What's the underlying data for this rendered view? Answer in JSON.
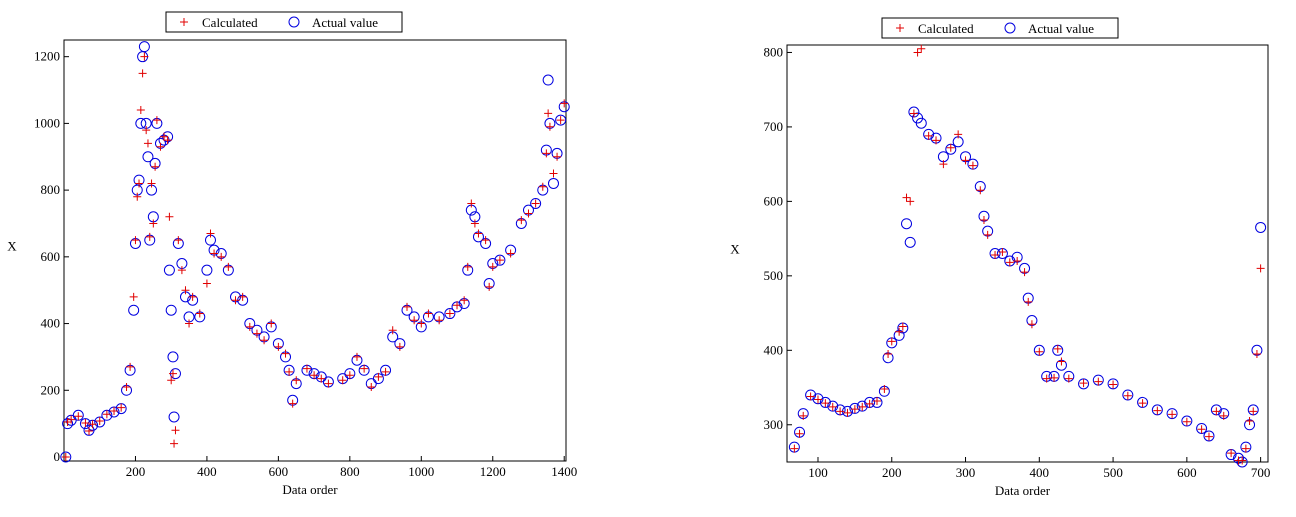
{
  "chart_data": [
    {
      "type": "scatter",
      "xlabel": "Data order",
      "ylabel": "X",
      "xlim": [
        0,
        1405
      ],
      "ylim": [
        -12,
        1250
      ],
      "xticks": [
        200,
        400,
        600,
        800,
        1000,
        1200,
        1400
      ],
      "yticks": [
        0,
        200,
        400,
        600,
        800,
        1000,
        1200
      ],
      "x": [
        5,
        10,
        20,
        40,
        60,
        70,
        80,
        100,
        120,
        140,
        160,
        175,
        185,
        195,
        200,
        205,
        210,
        215,
        220,
        225,
        230,
        235,
        240,
        245,
        250,
        255,
        260,
        270,
        280,
        290,
        295,
        300,
        305,
        308,
        312,
        320,
        330,
        340,
        350,
        360,
        380,
        400,
        410,
        420,
        440,
        460,
        480,
        500,
        520,
        540,
        560,
        580,
        600,
        620,
        630,
        640,
        650,
        680,
        700,
        720,
        740,
        780,
        800,
        820,
        840,
        860,
        880,
        900,
        920,
        940,
        960,
        980,
        1000,
        1020,
        1050,
        1080,
        1100,
        1120,
        1130,
        1140,
        1150,
        1160,
        1180,
        1190,
        1200,
        1220,
        1250,
        1280,
        1300,
        1320,
        1340,
        1350,
        1355,
        1360,
        1370,
        1380,
        1390,
        1400
      ],
      "series": [
        {
          "name": "Calculated",
          "color": "#e00000",
          "marker": "plus",
          "values": [
            0,
            105,
            112,
            122,
            102,
            78,
            98,
            108,
            128,
            138,
            148,
            210,
            270,
            480,
            650,
            780,
            820,
            1040,
            1150,
            1200,
            980,
            940,
            660,
            820,
            700,
            870,
            1010,
            930,
            960,
            950,
            720,
            230,
            250,
            40,
            80,
            650,
            560,
            500,
            400,
            480,
            430,
            520,
            670,
            610,
            600,
            570,
            470,
            480,
            390,
            370,
            350,
            400,
            330,
            310,
            255,
            160,
            230,
            265,
            245,
            235,
            220,
            230,
            245,
            300,
            265,
            210,
            240,
            255,
            380,
            330,
            450,
            410,
            400,
            430,
            410,
            430,
            455,
            470,
            570,
            760,
            700,
            670,
            650,
            510,
            570,
            590,
            610,
            710,
            730,
            760,
            810,
            910,
            1030,
            990,
            850,
            900,
            1010,
            1060
          ]
        },
        {
          "name": "Actual value",
          "color": "#0000e0",
          "marker": "circle",
          "values": [
            0,
            100,
            110,
            125,
            100,
            80,
            95,
            105,
            125,
            135,
            145,
            200,
            260,
            440,
            640,
            800,
            830,
            1000,
            1200,
            1230,
            1000,
            900,
            650,
            800,
            720,
            880,
            1000,
            940,
            950,
            960,
            560,
            440,
            300,
            120,
            250,
            640,
            580,
            480,
            420,
            470,
            420,
            560,
            650,
            620,
            610,
            560,
            480,
            470,
            400,
            380,
            360,
            390,
            340,
            300,
            260,
            170,
            220,
            260,
            250,
            240,
            225,
            235,
            250,
            290,
            260,
            220,
            235,
            260,
            360,
            340,
            440,
            420,
            390,
            420,
            420,
            430,
            450,
            460,
            560,
            740,
            720,
            660,
            640,
            520,
            580,
            590,
            620,
            700,
            740,
            760,
            800,
            920,
            1130,
            1000,
            820,
            910,
            1010,
            1050
          ]
        }
      ]
    },
    {
      "type": "scatter",
      "xlabel": "Data order",
      "ylabel": "X",
      "xlim": [
        58,
        710
      ],
      "ylim": [
        250,
        810
      ],
      "xticks": [
        100,
        200,
        300,
        400,
        500,
        600,
        700
      ],
      "yticks": [
        300,
        400,
        500,
        600,
        700,
        800
      ],
      "x": [
        68,
        75,
        80,
        90,
        100,
        110,
        120,
        130,
        140,
        150,
        160,
        170,
        180,
        190,
        195,
        200,
        210,
        215,
        220,
        225,
        230,
        235,
        240,
        250,
        260,
        270,
        280,
        290,
        300,
        310,
        320,
        325,
        330,
        340,
        350,
        360,
        370,
        380,
        385,
        390,
        400,
        410,
        420,
        425,
        430,
        440,
        460,
        480,
        500,
        520,
        540,
        560,
        580,
        600,
        620,
        630,
        640,
        650,
        660,
        670,
        675,
        680,
        685,
        690,
        695,
        700
      ],
      "series": [
        {
          "name": "Calculated",
          "color": "#e00000",
          "marker": "plus",
          "values": [
            268,
            288,
            312,
            338,
            334,
            329,
            324,
            318,
            316,
            321,
            324,
            328,
            332,
            348,
            395,
            412,
            425,
            432,
            605,
            600,
            718,
            800,
            805,
            688,
            682,
            650,
            672,
            690,
            655,
            648,
            615,
            575,
            555,
            528,
            532,
            518,
            520,
            505,
            465,
            435,
            398,
            362,
            363,
            402,
            385,
            362,
            356,
            358,
            354,
            339,
            329,
            319,
            314,
            304,
            294,
            284,
            318,
            312,
            262,
            252,
            252,
            268,
            305,
            318,
            395,
            510
          ]
        },
        {
          "name": "Actual value",
          "color": "#0000e0",
          "marker": "circle",
          "values": [
            270,
            290,
            315,
            340,
            335,
            330,
            325,
            320,
            318,
            322,
            325,
            330,
            330,
            345,
            390,
            410,
            420,
            430,
            570,
            545,
            720,
            712,
            705,
            690,
            685,
            660,
            670,
            680,
            660,
            650,
            620,
            580,
            560,
            530,
            530,
            520,
            525,
            510,
            470,
            440,
            400,
            365,
            365,
            400,
            380,
            365,
            355,
            360,
            355,
            340,
            330,
            320,
            315,
            305,
            295,
            285,
            320,
            315,
            260,
            255,
            250,
            270,
            300,
            320,
            400,
            565
          ]
        }
      ]
    }
  ]
}
